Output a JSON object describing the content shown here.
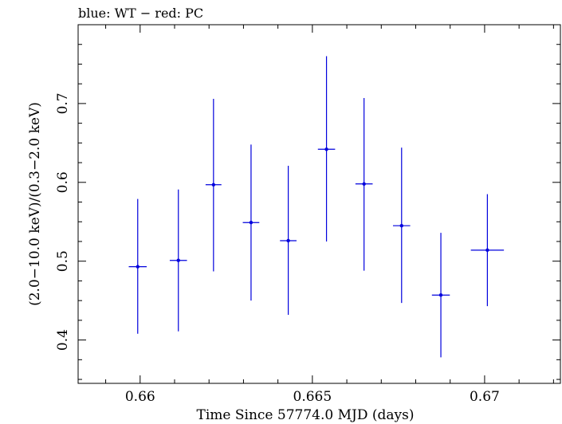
{
  "chart_data": {
    "type": "scatter",
    "title": "blue: WT − red: PC",
    "xlabel": "Time Since 57774.0 MJD (days)",
    "ylabel": "(2.0−10.0 keV)/(0.3−2.0 keV)",
    "xlim": [
      0.6582,
      0.6722
    ],
    "ylim": [
      0.345,
      0.8
    ],
    "x_ticks": [
      0.66,
      0.665,
      0.67
    ],
    "x_tick_labels": [
      "0.66",
      "0.665",
      "0.67"
    ],
    "y_ticks": [
      0.4,
      0.5,
      0.6,
      0.7
    ],
    "y_tick_labels": [
      "0.4",
      "0.5",
      "0.6",
      "0.7"
    ],
    "series": [
      {
        "name": "WT",
        "color": "#0000dd",
        "points": [
          {
            "x": 0.65993,
            "xerr_lo": 0.00026,
            "xerr_hi": 0.00026,
            "y": 0.493,
            "yerr_lo": 0.085,
            "yerr_hi": 0.086
          },
          {
            "x": 0.66111,
            "xerr_lo": 0.00025,
            "xerr_hi": 0.00025,
            "y": 0.501,
            "yerr_lo": 0.09,
            "yerr_hi": 0.09
          },
          {
            "x": 0.66213,
            "xerr_lo": 0.00023,
            "xerr_hi": 0.00023,
            "y": 0.597,
            "yerr_lo": 0.11,
            "yerr_hi": 0.109
          },
          {
            "x": 0.66322,
            "xerr_lo": 0.00024,
            "xerr_hi": 0.00024,
            "y": 0.549,
            "yerr_lo": 0.099,
            "yerr_hi": 0.099
          },
          {
            "x": 0.6643,
            "xerr_lo": 0.00024,
            "xerr_hi": 0.00024,
            "y": 0.526,
            "yerr_lo": 0.094,
            "yerr_hi": 0.095
          },
          {
            "x": 0.66541,
            "xerr_lo": 0.00025,
            "xerr_hi": 0.00025,
            "y": 0.642,
            "yerr_lo": 0.117,
            "yerr_hi": 0.118
          },
          {
            "x": 0.6665,
            "xerr_lo": 0.00025,
            "xerr_hi": 0.00025,
            "y": 0.598,
            "yerr_lo": 0.11,
            "yerr_hi": 0.109
          },
          {
            "x": 0.66759,
            "xerr_lo": 0.00025,
            "xerr_hi": 0.00025,
            "y": 0.545,
            "yerr_lo": 0.098,
            "yerr_hi": 0.099
          },
          {
            "x": 0.66873,
            "xerr_lo": 0.00026,
            "xerr_hi": 0.00026,
            "y": 0.457,
            "yerr_lo": 0.079,
            "yerr_hi": 0.079
          },
          {
            "x": 0.67008,
            "xerr_lo": 0.00048,
            "xerr_hi": 0.00048,
            "y": 0.514,
            "yerr_lo": 0.071,
            "yerr_hi": 0.071
          }
        ]
      }
    ]
  }
}
